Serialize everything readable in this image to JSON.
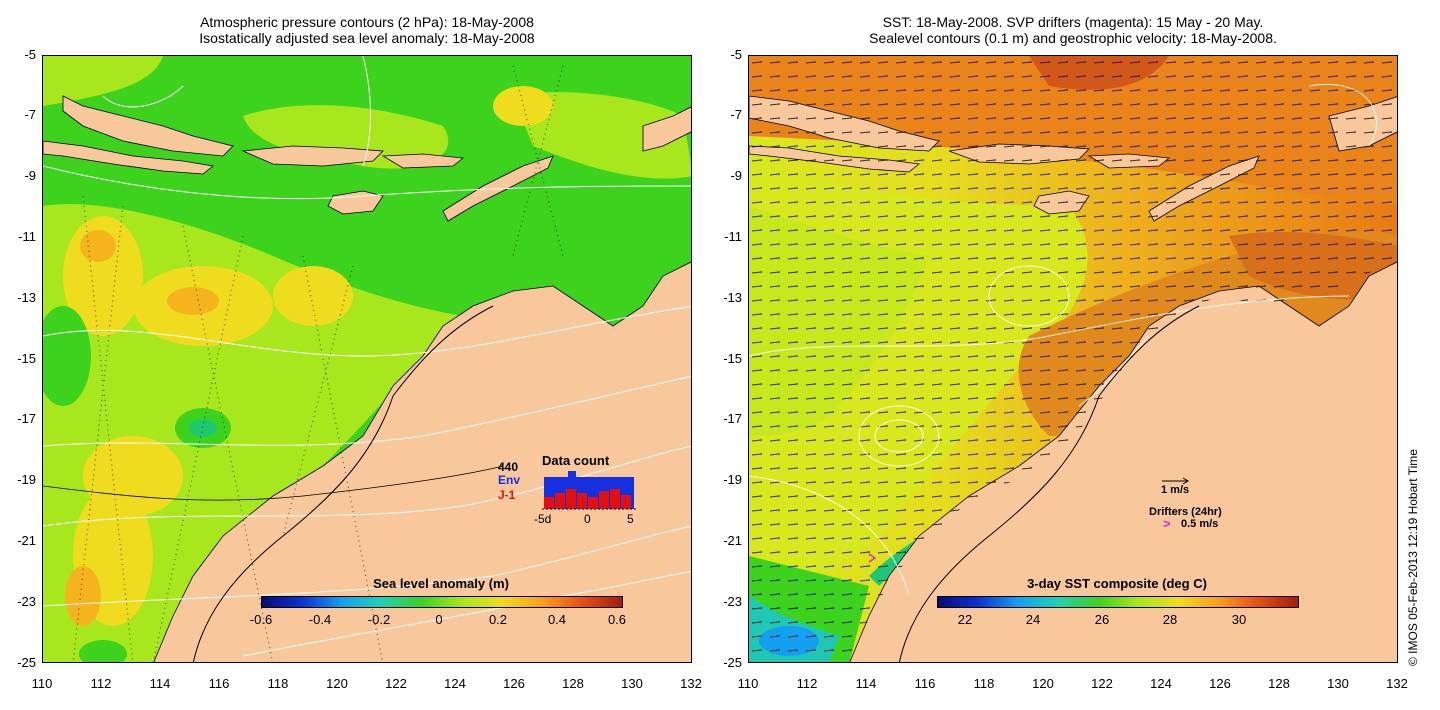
{
  "left_panel": {
    "title_line1": "Atmospheric pressure contours (2 hPa): 18-May-2008",
    "title_line2": "Isostatically adjusted sea level anomaly: 18-May-2008",
    "colorbar": {
      "label": "Sea level anomaly (m)",
      "ticks": [
        "-0.6",
        "-0.4",
        "-0.2",
        "0",
        "0.2",
        "0.4",
        "0.6"
      ]
    },
    "data_count": {
      "title": "Data count",
      "total": "440",
      "env_label": "Env",
      "j1_label": "J-1",
      "x_ticks": [
        "-5d",
        "0",
        "5"
      ],
      "env_color": "#1530e0",
      "j1_color": "#e01010"
    }
  },
  "right_panel": {
    "title_line1": "SST: 18-May-2008. SVP drifters (magenta): 15 May - 20 May.",
    "title_line2": "Sealevel contours (0.1 m) and geostrophic velocity: 18-May-2008.",
    "colorbar": {
      "label": "3-day SST composite (deg C)",
      "ticks": [
        "22",
        "24",
        "26",
        "28",
        "30"
      ]
    },
    "velocity_scale": "1 m/s",
    "drifters_label": "Drifters (24hr)",
    "drifter_scale": "0.5 m/s",
    "drifter_symbol": ">"
  },
  "axes": {
    "y_ticks": [
      "-5",
      "-7",
      "-9",
      "-11",
      "-13",
      "-15",
      "-17",
      "-19",
      "-21",
      "-23",
      "-25"
    ],
    "x_ticks": [
      "110",
      "112",
      "114",
      "116",
      "118",
      "120",
      "122",
      "124",
      "126",
      "128",
      "130",
      "132"
    ]
  },
  "credit": "© IMOS 05-Feb-2013 12:19 Hobart Time",
  "colors": {
    "land": "#f8c89c",
    "sla_green": "#3cd21e",
    "sla_yellowgreen": "#a8e61e",
    "sla_yellow": "#f0dc1e",
    "sst_orange": "#e87a14",
    "sst_yellow": "#d8e81e"
  }
}
